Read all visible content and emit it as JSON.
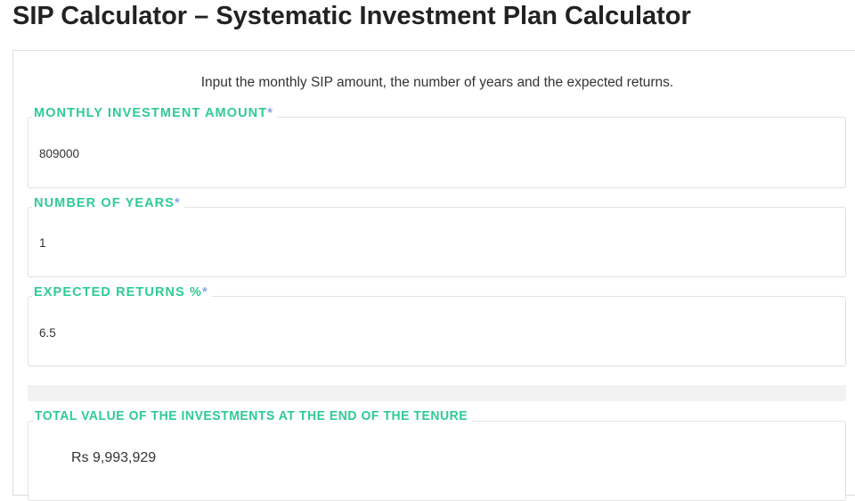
{
  "page": {
    "title": "SIP Calculator – Systematic Investment Plan Calculator"
  },
  "form": {
    "intro": "Input the monthly SIP amount, the number of years and the expected returns.",
    "fields": [
      {
        "label": "MONTHLY INVESTMENT AMOUNT",
        "required": "*",
        "value": "809000"
      },
      {
        "label": "NUMBER OF YEARS",
        "required": "*",
        "value": "1"
      },
      {
        "label": "EXPECTED RETURNS %",
        "required": "*",
        "value": "6.5"
      }
    ],
    "result": {
      "label": "TOTAL VALUE OF THE INVESTMENTS AT THE END OF THE TENURE",
      "value": "Rs 9,993,929"
    }
  },
  "colors": {
    "accent": "#2fcb93",
    "required": "#8aa5e6"
  }
}
